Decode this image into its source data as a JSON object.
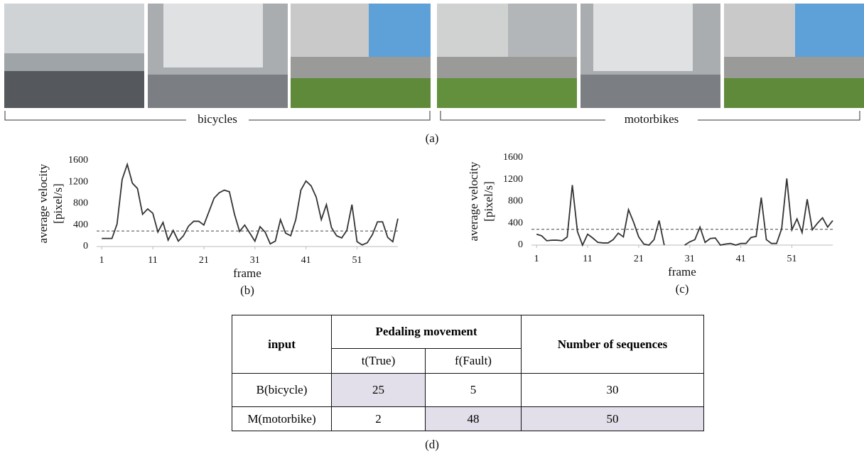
{
  "photos": {
    "groups": [
      "bicycles",
      "motorbikes"
    ],
    "caption": "(a)"
  },
  "chart_data": [
    {
      "type": "line",
      "caption": "(b)",
      "x_label": "frame",
      "y_label": [
        "average velocity",
        "[pixel/s]"
      ],
      "x": [
        1,
        2,
        3,
        4,
        5,
        6,
        7,
        8,
        9,
        10,
        11,
        12,
        13,
        14,
        15,
        16,
        17,
        18,
        19,
        20,
        21,
        22,
        23,
        24,
        25,
        26,
        27,
        28,
        29,
        30,
        31,
        32,
        33,
        34,
        35,
        36,
        37,
        38,
        39,
        40,
        41,
        42,
        43,
        44,
        45,
        46,
        47,
        48,
        49,
        50,
        51,
        52,
        53,
        54,
        55,
        56,
        57,
        58,
        59
      ],
      "series": [
        {
          "color": "#333333",
          "values": [
            150,
            150,
            150,
            420,
            1250,
            1530,
            1180,
            1080,
            600,
            700,
            620,
            270,
            450,
            120,
            300,
            100,
            200,
            380,
            470,
            470,
            400,
            650,
            900,
            1000,
            1050,
            1020,
            600,
            280,
            400,
            250,
            100,
            370,
            270,
            50,
            100,
            500,
            250,
            200,
            500,
            1050,
            1220,
            1130,
            920,
            500,
            780,
            350,
            200,
            160,
            300,
            780,
            90,
            30,
            70,
            220,
            460,
            460,
            170,
            90,
            520
          ]
        }
      ],
      "reference_line": 290,
      "xlim": [
        0,
        59
      ],
      "ylim": [
        0,
        1600
      ],
      "xticks": [
        1,
        11,
        21,
        31,
        41,
        51
      ],
      "yticks": [
        0,
        400,
        800,
        1200,
        1600
      ]
    },
    {
      "type": "line",
      "caption": "(c)",
      "x_label": "frame",
      "y_label": [
        "average velocity",
        "[pixel/s]"
      ],
      "x": [
        1,
        2,
        3,
        4,
        5,
        6,
        7,
        8,
        9,
        10,
        11,
        12,
        13,
        14,
        15,
        16,
        17,
        18,
        19,
        20,
        21,
        22,
        23,
        24,
        25,
        26,
        27,
        28,
        29,
        30,
        31,
        32,
        33,
        34,
        35,
        36,
        37,
        38,
        39,
        40,
        41,
        42,
        43,
        44,
        45,
        46,
        47,
        48,
        49,
        50,
        51,
        52,
        53,
        54,
        55,
        56,
        57,
        58,
        59
      ],
      "series": [
        {
          "color": "#333333",
          "values": [
            200,
            170,
            80,
            90,
            90,
            80,
            150,
            1100,
            250,
            0,
            200,
            130,
            50,
            40,
            40,
            100,
            220,
            150,
            650,
            420,
            150,
            20,
            0,
            100,
            450,
            0,
            null,
            null,
            null,
            0,
            60,
            100,
            330,
            50,
            120,
            130,
            0,
            20,
            30,
            0,
            30,
            30,
            140,
            160,
            870,
            100,
            30,
            30,
            300,
            1220,
            280,
            480,
            230,
            840,
            280,
            400,
            500,
            330,
            450
          ]
        }
      ],
      "reference_line": 290,
      "xlim": [
        0,
        59
      ],
      "ylim": [
        0,
        1600
      ],
      "xticks": [
        1,
        11,
        21,
        31,
        41,
        51
      ],
      "yticks": [
        0,
        400,
        800,
        1200,
        1600
      ]
    }
  ],
  "table": {
    "header": {
      "input": "input",
      "group": "Pedaling movement",
      "sub": [
        "t(True)",
        "f(Fault)"
      ],
      "count": "Number of sequences"
    },
    "rows": [
      [
        "B(bicycle)",
        25,
        5,
        30
      ],
      [
        "M(motorbike)",
        2,
        48,
        50
      ]
    ],
    "caption": "(d)"
  }
}
